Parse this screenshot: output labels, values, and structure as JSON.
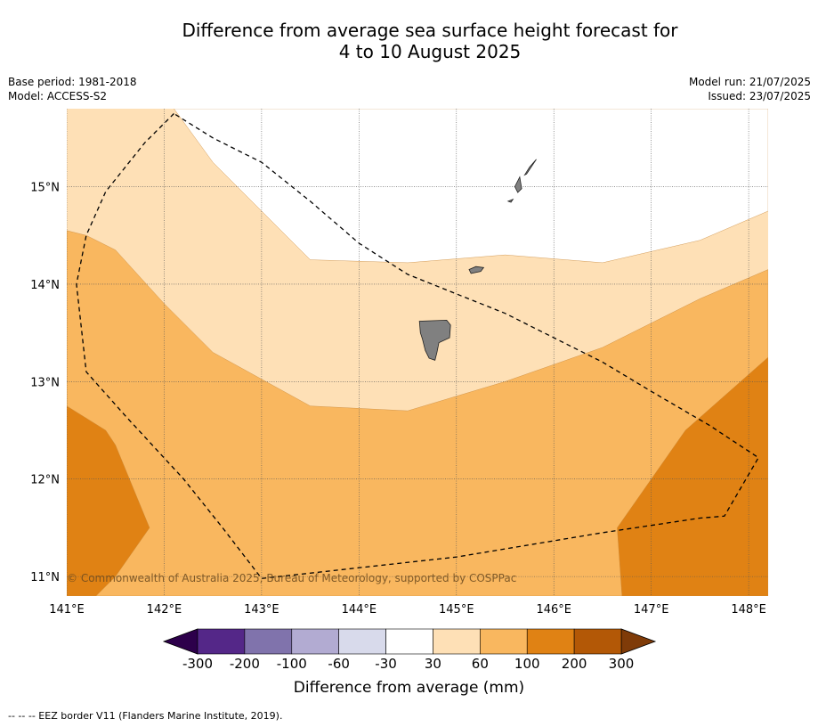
{
  "title_line1": "Difference from average sea surface height forecast for",
  "title_line2": "4 to 10 August 2025",
  "base_period": "Base period: 1981-2018",
  "model": "Model: ACCESS-S2",
  "model_run": "Model run: 21/07/2025",
  "issued": "Issued: 23/07/2025",
  "copyright": "© Commonwealth of Australia 2025, Bureau of Meteorology, supported by COSPPac",
  "map": {
    "lon_range": [
      141.0,
      148.2
    ],
    "lat_range": [
      10.8,
      15.8
    ],
    "lon_ticks": [
      141,
      142,
      143,
      144,
      145,
      146,
      147,
      148
    ],
    "lon_tick_labels": [
      "141°E",
      "142°E",
      "143°E",
      "144°E",
      "145°E",
      "146°E",
      "147°E",
      "148°E"
    ],
    "lat_ticks": [
      11,
      12,
      13,
      14,
      15
    ],
    "lat_tick_labels": [
      "11°N",
      "12°N",
      "13°N",
      "14°N",
      "15°N"
    ],
    "grid": true,
    "grid_style": "dotted",
    "background_band": "30 to 60",
    "zones": [
      {
        "band": "0 to 30",
        "color": "#ffffff",
        "points": [
          [
            142.1,
            15.8
          ],
          [
            142.5,
            15.25
          ],
          [
            143.5,
            14.25
          ],
          [
            144.5,
            14.22
          ],
          [
            145.5,
            14.3
          ],
          [
            146.5,
            14.22
          ],
          [
            147.5,
            14.45
          ],
          [
            148.2,
            14.75
          ],
          [
            148.2,
            15.8
          ]
        ]
      },
      {
        "band": "60 to 100",
        "color": "#f9b75f",
        "points": [
          [
            141.0,
            14.55
          ],
          [
            141.2,
            14.5
          ],
          [
            141.5,
            14.35
          ],
          [
            142.0,
            13.8
          ],
          [
            142.5,
            13.3
          ],
          [
            143.5,
            12.75
          ],
          [
            144.5,
            12.7
          ],
          [
            145.5,
            13.0
          ],
          [
            146.5,
            13.35
          ],
          [
            147.5,
            13.85
          ],
          [
            148.2,
            14.15
          ],
          [
            148.2,
            10.8
          ],
          [
            141.0,
            10.8
          ]
        ]
      },
      {
        "band": "100 to 200",
        "color": "#e08214",
        "points": [
          [
            141.0,
            12.75
          ],
          [
            141.4,
            12.5
          ],
          [
            141.5,
            12.35
          ],
          [
            141.85,
            11.5
          ],
          [
            141.5,
            11.0
          ],
          [
            141.3,
            10.8
          ],
          [
            141.0,
            10.8
          ]
        ]
      },
      {
        "band": "100 to 200",
        "color": "#e08214",
        "points": [
          [
            146.7,
            10.8
          ],
          [
            146.65,
            11.5
          ],
          [
            147.35,
            12.5
          ],
          [
            148.2,
            13.25
          ],
          [
            148.2,
            10.8
          ]
        ]
      }
    ],
    "eez_border": [
      [
        142.1,
        15.75
      ],
      [
        141.8,
        15.45
      ],
      [
        141.4,
        14.95
      ],
      [
        141.2,
        14.5
      ],
      [
        141.1,
        14.0
      ],
      [
        141.2,
        13.1
      ],
      [
        141.6,
        12.65
      ],
      [
        142.2,
        12.0
      ],
      [
        142.6,
        11.5
      ],
      [
        143.0,
        10.98
      ],
      [
        145.0,
        11.2
      ],
      [
        146.5,
        11.45
      ],
      [
        147.5,
        11.6
      ],
      [
        147.75,
        11.62
      ],
      [
        148.1,
        12.22
      ],
      [
        147.6,
        12.55
      ],
      [
        147.0,
        12.9
      ],
      [
        146.5,
        13.2
      ],
      [
        146.0,
        13.45
      ],
      [
        145.5,
        13.7
      ],
      [
        145.0,
        13.9
      ],
      [
        144.5,
        14.1
      ],
      [
        144.0,
        14.42
      ],
      [
        143.5,
        14.85
      ],
      [
        143.0,
        15.25
      ],
      [
        142.5,
        15.5
      ],
      [
        142.1,
        15.75
      ]
    ],
    "islands": [
      {
        "name": "Guam",
        "points": [
          [
            144.62,
            13.62
          ],
          [
            144.9,
            13.63
          ],
          [
            144.94,
            13.58
          ],
          [
            144.93,
            13.45
          ],
          [
            144.82,
            13.4
          ],
          [
            144.8,
            13.3
          ],
          [
            144.78,
            13.22
          ],
          [
            144.72,
            13.24
          ],
          [
            144.68,
            13.32
          ],
          [
            144.65,
            13.44
          ],
          [
            144.63,
            13.5
          ]
        ]
      },
      {
        "name": "Rota",
        "points": [
          [
            145.13,
            14.15
          ],
          [
            145.2,
            14.18
          ],
          [
            145.28,
            14.17
          ],
          [
            145.25,
            14.13
          ],
          [
            145.15,
            14.11
          ]
        ]
      },
      {
        "name": "Tinian",
        "points": [
          [
            145.6,
            15.0
          ],
          [
            145.65,
            15.1
          ],
          [
            145.67,
            14.98
          ],
          [
            145.63,
            14.94
          ]
        ]
      },
      {
        "name": "Saipan",
        "points": [
          [
            145.7,
            15.12
          ],
          [
            145.75,
            15.2
          ],
          [
            145.82,
            15.28
          ],
          [
            145.78,
            15.22
          ],
          [
            145.72,
            15.13
          ]
        ]
      },
      {
        "name": "Aguijan",
        "points": [
          [
            145.53,
            14.85
          ],
          [
            145.58,
            14.87
          ],
          [
            145.56,
            14.84
          ]
        ]
      }
    ]
  },
  "colorbar": {
    "title": "Difference from average (mm)",
    "labels": [
      "-300",
      "-200",
      "-100",
      "-60",
      "-30",
      "30",
      "60",
      "100",
      "200",
      "300"
    ],
    "colors": [
      "#542788",
      "#8073ac",
      "#b2abd2",
      "#d8daeb",
      "#ffffff",
      "#fee0b6",
      "#f9b75f",
      "#e08214",
      "#b35806"
    ],
    "under_color": "#2d004b",
    "over_color": "#7f3b08"
  },
  "footer": "--  --  -- EEZ border V11 (Flanders Marine Institute, 2019)."
}
